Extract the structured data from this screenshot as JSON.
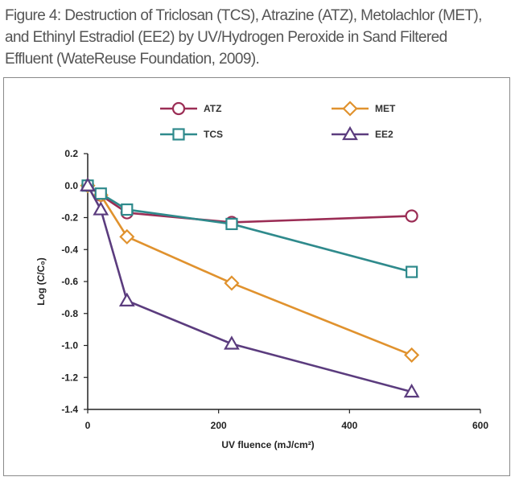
{
  "figure": {
    "caption": "Figure 4: Destruction of Triclosan (TCS), Atrazine (ATZ), Metolachlor (MET), and Ethinyl Estradiol (EE2) by UV/Hydrogen Peroxide in Sand Filtered Effluent (WateReuse Foundation, 2009)."
  },
  "chart_data": {
    "type": "line",
    "title": "",
    "xlabel": "UV fluence (mJ/cm²)",
    "ylabel": "Log (C/C₀)",
    "xlim": [
      0,
      600
    ],
    "ylim": [
      -1.4,
      0.2
    ],
    "x_ticks": [
      0,
      200,
      400,
      600
    ],
    "x_tick_labels": [
      "0",
      "200",
      "400",
      "600"
    ],
    "y_ticks": [
      0.2,
      0.0,
      -0.2,
      -0.4,
      -0.6,
      -0.8,
      -1.0,
      -1.2,
      -1.4
    ],
    "y_tick_labels": [
      "0.2",
      "0.0",
      "-0.2",
      "-0.4",
      "-0.6",
      "-0.8",
      "-1.0",
      "-1.2",
      "-1.4"
    ],
    "grid": false,
    "legend_position": "top",
    "series": [
      {
        "name": "ATZ",
        "color": "#9b2d55",
        "marker": "circle",
        "x": [
          0,
          20,
          60,
          220,
          495
        ],
        "y": [
          0.0,
          -0.06,
          -0.17,
          -0.23,
          -0.19
        ]
      },
      {
        "name": "MET",
        "color": "#e0922e",
        "marker": "diamond",
        "x": [
          0,
          20,
          60,
          220,
          495
        ],
        "y": [
          0.0,
          -0.06,
          -0.32,
          -0.61,
          -1.06
        ]
      },
      {
        "name": "TCS",
        "color": "#2f8a8c",
        "marker": "square",
        "x": [
          0,
          20,
          60,
          220,
          495
        ],
        "y": [
          0.0,
          -0.05,
          -0.15,
          -0.24,
          -0.54
        ]
      },
      {
        "name": "EE2",
        "color": "#5b3c7e",
        "marker": "triangle",
        "x": [
          0,
          20,
          60,
          220,
          495
        ],
        "y": [
          0.0,
          -0.15,
          -0.72,
          -0.99,
          -1.29
        ]
      }
    ]
  }
}
